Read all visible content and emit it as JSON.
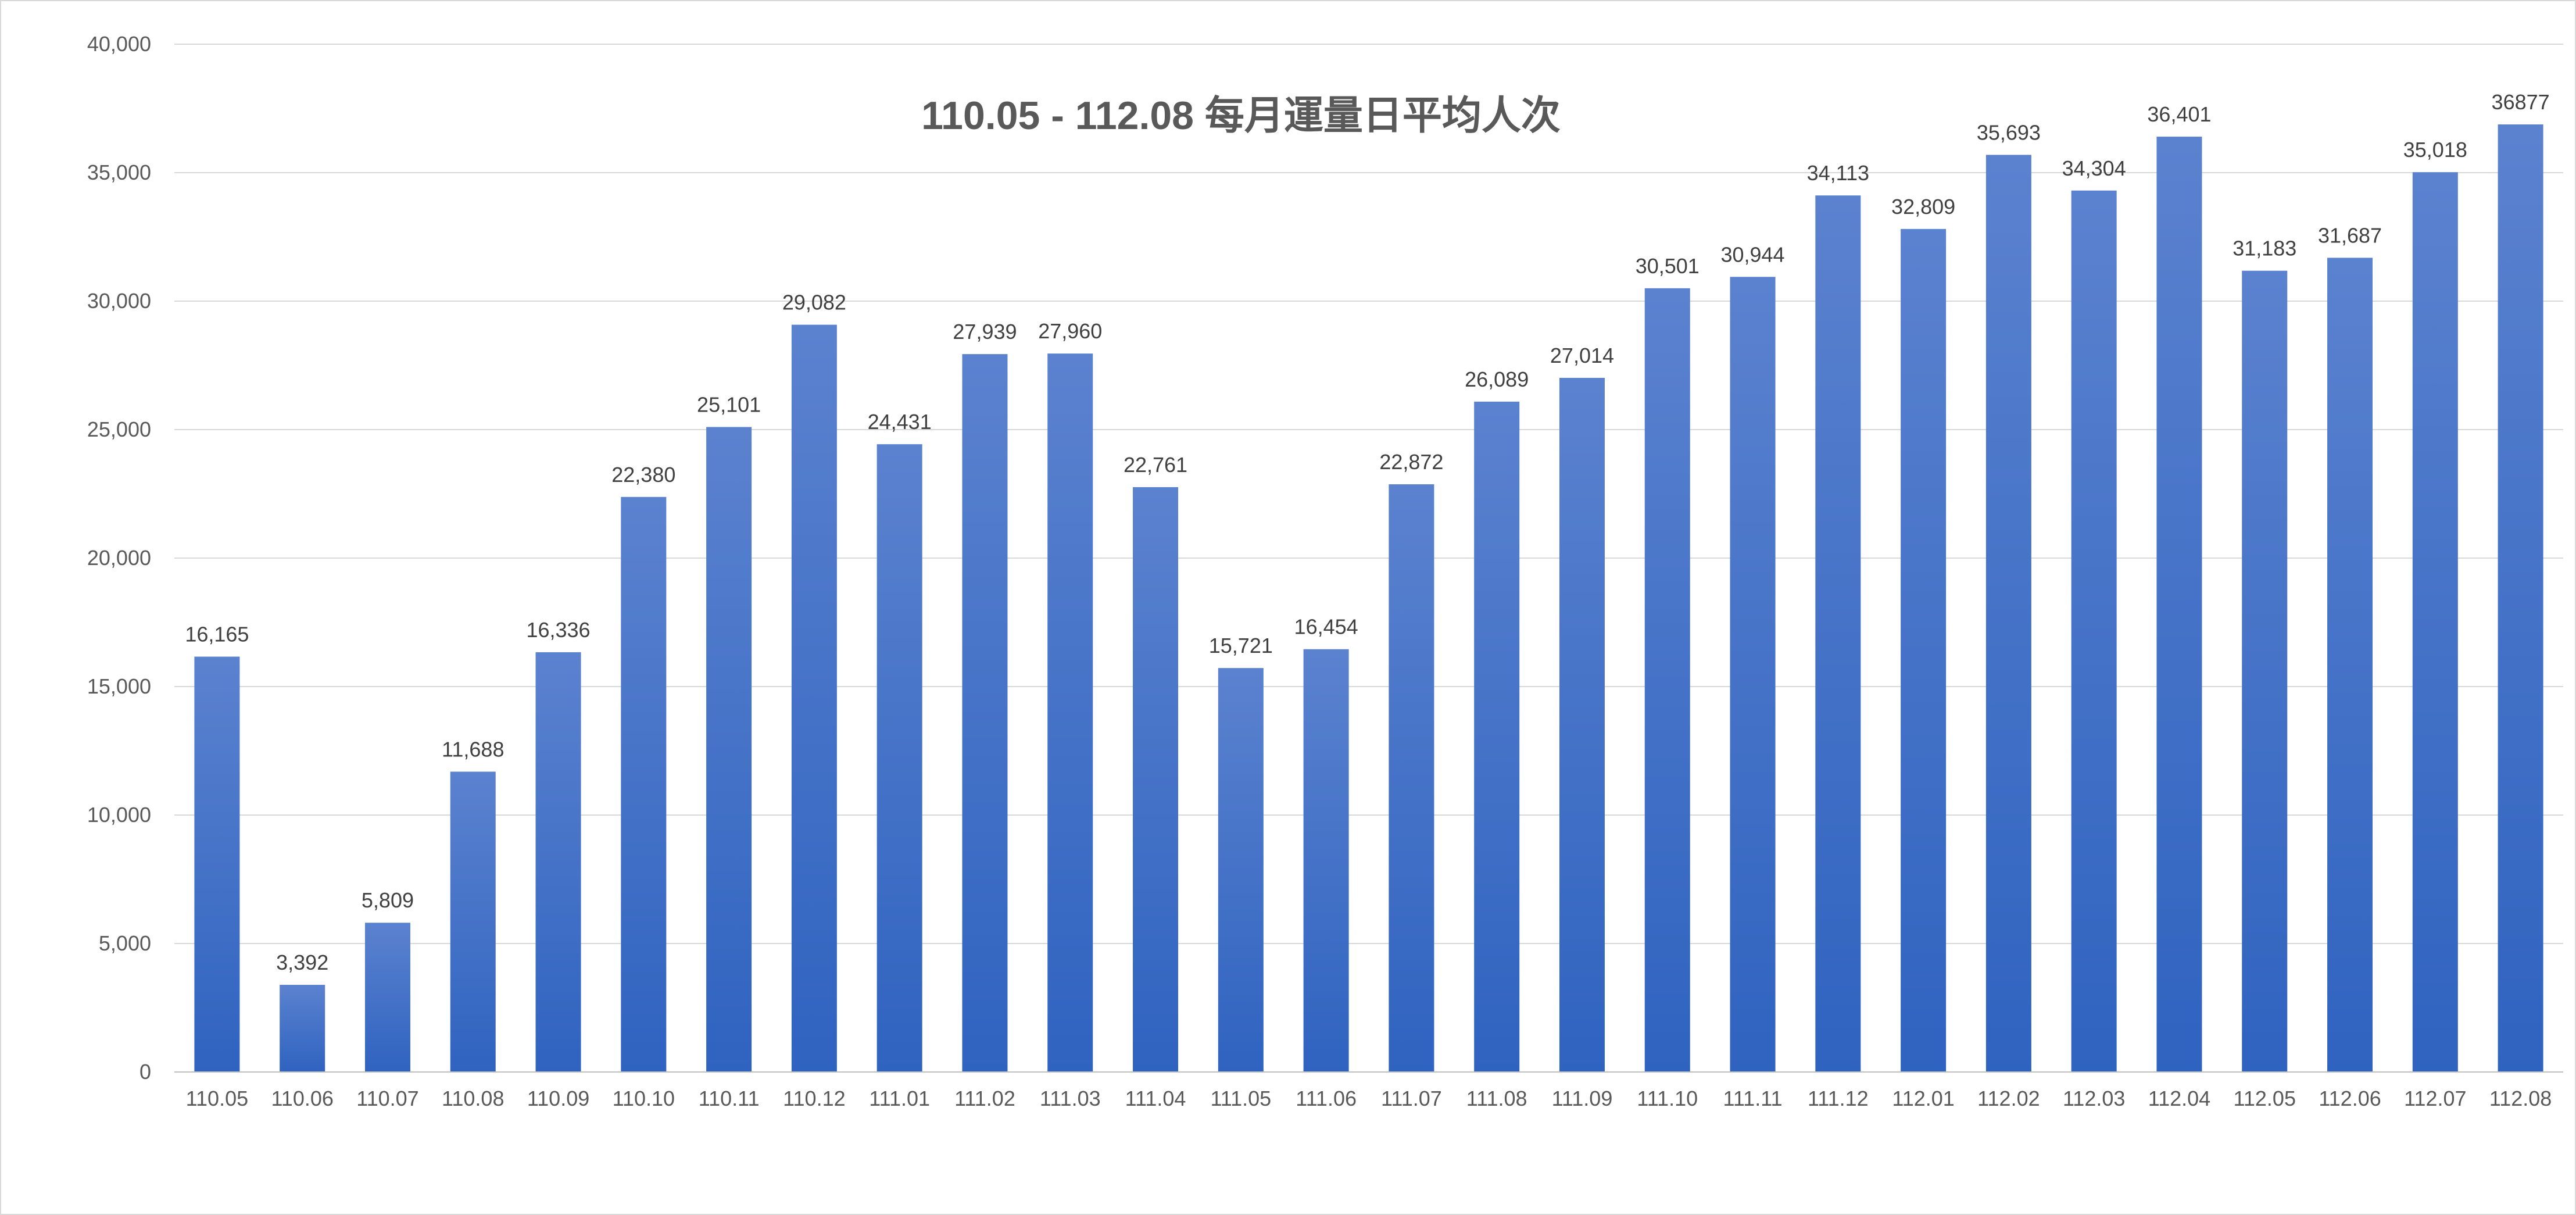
{
  "chart_data": {
    "type": "bar",
    "title": "110.05 - 112.08 每月運量日平均人次",
    "xlabel": "",
    "ylabel": "",
    "ylim": [
      0,
      40000
    ],
    "yticks": [
      "0",
      "5,000",
      "10,000",
      "15,000",
      "20,000",
      "25,000",
      "30,000",
      "35,000",
      "40,000"
    ],
    "yticks_values": [
      0,
      5000,
      10000,
      15000,
      20000,
      25000,
      30000,
      35000,
      40000
    ],
    "grid": true,
    "legend": "none",
    "bar_color_top": "#5b82cf",
    "bar_color_bottom": "#2f63c0",
    "categories": [
      "110.05",
      "110.06",
      "110.07",
      "110.08",
      "110.09",
      "110.10",
      "110.11",
      "110.12",
      "111.01",
      "111.02",
      "111.03",
      "111.04",
      "111.05",
      "111.06",
      "111.07",
      "111.08",
      "111.09",
      "111.10",
      "111.11",
      "111.12",
      "112.01",
      "112.02",
      "112.03",
      "112.04",
      "112.05",
      "112.06",
      "112.07",
      "112.08"
    ],
    "values": [
      16165,
      3392,
      5809,
      11688,
      16336,
      22380,
      25101,
      29082,
      24431,
      27939,
      27960,
      22761,
      15721,
      16454,
      22872,
      26089,
      27014,
      30501,
      30944,
      34113,
      32809,
      35693,
      34304,
      36401,
      31183,
      31687,
      35018,
      36877
    ],
    "data_labels": [
      "16,165",
      "3,392",
      "5,809",
      "11,688",
      "16,336",
      "22,380",
      "25,101",
      "29,082",
      "24,431",
      "27,939",
      "27,960",
      "22,761",
      "15,721",
      "16,454",
      "22,872",
      "26,089",
      "27,014",
      "30,501",
      "30,944",
      "34,113",
      "32,809",
      "35,693",
      "34,304",
      "36,401",
      "31,183",
      "31,687",
      "35,018",
      "36877"
    ]
  }
}
